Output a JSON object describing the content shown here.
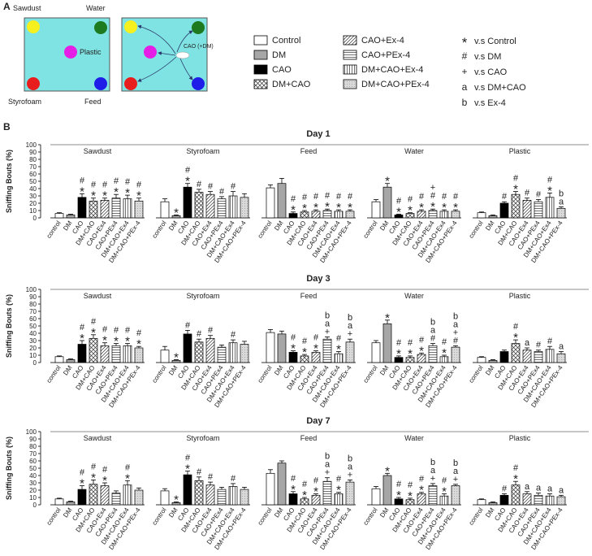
{
  "panel_a": {
    "label": "A",
    "objects": [
      "Sawdust",
      "Water",
      "Plastic",
      "Styrofoam",
      "Feed"
    ],
    "arrow_label": "CAO (+DM)"
  },
  "legend": {
    "groups": [
      {
        "name": "Control",
        "fill": "white"
      },
      {
        "name": "DM",
        "fill": "gray"
      },
      {
        "name": "CAO",
        "fill": "black"
      },
      {
        "name": "DM+CAO",
        "fill": "crosshatch"
      },
      {
        "name": "CAO+Ex-4",
        "fill": "diagonal"
      },
      {
        "name": "CAO+PEx-4",
        "fill": "horizontal"
      },
      {
        "name": "DM+CAO+Ex-4",
        "fill": "vertical"
      },
      {
        "name": "DM+CAO+PEx-4",
        "fill": "lightgray"
      }
    ],
    "markers": [
      {
        "symbol": "*",
        "text": "v.s Control",
        "color": "#000000"
      },
      {
        "symbol": "#",
        "text": "v.s DM",
        "color": "#e8262a"
      },
      {
        "symbol": "+",
        "text": "v.s CAO",
        "color": "#2a4fd6"
      },
      {
        "symbol": "a",
        "text": "v.s DM+CAO",
        "color": "#1f8a3a"
      },
      {
        "symbol": "b",
        "text": "v.s Ex-4",
        "color": "#7b2f9e"
      }
    ]
  },
  "panel_b_label": "B",
  "chart_data": [
    {
      "type": "bar",
      "title": "Day 1",
      "ylabel": "Sniffing Bouts (%)",
      "ylim": [
        0,
        100
      ],
      "yticks": [
        0,
        10,
        20,
        30,
        40,
        50,
        60,
        70,
        80,
        90,
        100
      ],
      "categories": [
        "control",
        "DM",
        "CAO",
        "DM+CAO",
        "CAO+Ex4",
        "CAO+PEx4",
        "DM+CAO+Ex4",
        "DM+CAO+PEx-4"
      ],
      "panels": [
        {
          "name": "Sawdust",
          "values": [
            6,
            4,
            28,
            23,
            24,
            27,
            26,
            23
          ],
          "errors": [
            1,
            1,
            5,
            4,
            3,
            5,
            5,
            4
          ],
          "marks": [
            [],
            [],
            [
              "*",
              "#"
            ],
            [
              "*",
              "#"
            ],
            [
              "*",
              "#"
            ],
            [
              "*",
              "#"
            ],
            [
              "*",
              "#"
            ],
            [
              "*",
              "#"
            ]
          ]
        },
        {
          "name": "Styrofoam",
          "values": [
            22,
            3,
            42,
            35,
            32,
            26,
            30,
            28
          ],
          "errors": [
            4,
            1,
            5,
            4,
            4,
            3,
            6,
            5
          ],
          "marks": [
            [],
            [
              "*"
            ],
            [
              "*",
              "#"
            ],
            [
              "#"
            ],
            [
              "#"
            ],
            [
              "#"
            ],
            [
              "#"
            ],
            []
          ]
        },
        {
          "name": "Feed",
          "values": [
            41,
            47,
            6,
            8,
            9,
            10,
            9,
            9
          ],
          "errors": [
            4,
            7,
            2,
            2,
            2,
            2,
            2,
            2
          ],
          "marks": [
            [],
            [],
            [
              "*",
              "#"
            ],
            [
              "*",
              "#"
            ],
            [
              "*",
              "#"
            ],
            [
              "*",
              "#"
            ],
            [
              "*",
              "#"
            ],
            [
              "*",
              "#"
            ]
          ]
        },
        {
          "name": "Water",
          "values": [
            22,
            42,
            4,
            6,
            9,
            10,
            9,
            9
          ],
          "errors": [
            3,
            5,
            1,
            1,
            2,
            2,
            2,
            2
          ],
          "marks": [
            [],
            [
              "*"
            ],
            [
              "*",
              "#"
            ],
            [
              "*",
              "#"
            ],
            [
              "*",
              "#"
            ],
            [
              "*",
              "#",
              "+"
            ],
            [
              "*",
              "#"
            ],
            [
              "*",
              "#"
            ]
          ]
        },
        {
          "name": "Plastic",
          "values": [
            7,
            3,
            20,
            32,
            24,
            22,
            28,
            13
          ],
          "errors": [
            1,
            1,
            2,
            4,
            3,
            3,
            6,
            2
          ],
          "marks": [
            [],
            [],
            [
              "#"
            ],
            [
              "*",
              "#"
            ],
            [
              "#"
            ],
            [
              "#"
            ],
            [
              "*",
              "#"
            ],
            [
              "a",
              "b"
            ]
          ]
        }
      ]
    },
    {
      "type": "bar",
      "title": "Day 3",
      "ylabel": "Sniffing Bouts (%)",
      "ylim": [
        0,
        100
      ],
      "yticks": [
        0,
        10,
        20,
        30,
        40,
        50,
        60,
        70,
        80,
        90,
        100
      ],
      "categories": [
        "control",
        "DM",
        "CAO",
        "DM+CAO",
        "CAO+Ex4",
        "CAO+PEx4",
        "DM+CAO+Ex4",
        "DM+CAO+PEx-4"
      ],
      "panels": [
        {
          "name": "Sawdust",
          "values": [
            8,
            4,
            25,
            33,
            23,
            23,
            23,
            20
          ],
          "errors": [
            1,
            1,
            5,
            5,
            4,
            3,
            3,
            2
          ],
          "marks": [
            [],
            [],
            [
              "*",
              "#"
            ],
            [
              "*",
              "#"
            ],
            [
              "*",
              "#"
            ],
            [
              "*",
              "#"
            ],
            [
              "*",
              "#"
            ],
            [
              "*",
              "#"
            ]
          ]
        },
        {
          "name": "Styrofoam",
          "values": [
            17,
            3,
            39,
            28,
            33,
            21,
            27,
            25
          ],
          "errors": [
            5,
            1,
            5,
            4,
            4,
            3,
            4,
            4
          ],
          "marks": [
            [],
            [
              "*"
            ],
            [
              "#"
            ],
            [
              "#"
            ],
            [
              "#"
            ],
            [],
            [
              "#"
            ],
            []
          ]
        },
        {
          "name": "Feed",
          "values": [
            41,
            39,
            14,
            9,
            14,
            32,
            12,
            28
          ],
          "errors": [
            4,
            4,
            2,
            2,
            2,
            3,
            3,
            4
          ],
          "marks": [
            [],
            [],
            [
              "*",
              "#"
            ],
            [
              "*",
              "#"
            ],
            [
              "*",
              "#"
            ],
            [
              "+",
              "a",
              "b"
            ],
            [
              "*",
              "#"
            ],
            [
              "+",
              "a",
              "b"
            ]
          ]
        },
        {
          "name": "Water",
          "values": [
            27,
            53,
            7,
            7,
            11,
            23,
            8,
            21
          ],
          "errors": [
            3,
            5,
            2,
            2,
            2,
            3,
            2,
            2
          ],
          "marks": [
            [],
            [
              "*"
            ],
            [
              "*",
              "#"
            ],
            [
              "*",
              "#"
            ],
            [
              "*",
              "#"
            ],
            [
              "#",
              "a",
              "b"
            ],
            [
              "*",
              "#"
            ],
            [
              "#",
              "+",
              "a",
              "b"
            ]
          ]
        },
        {
          "name": "Plastic",
          "values": [
            7,
            3,
            15,
            26,
            17,
            15,
            18,
            12
          ],
          "errors": [
            1,
            1,
            2,
            5,
            3,
            2,
            4,
            3
          ],
          "marks": [
            [],
            [],
            [],
            [
              "*",
              "#"
            ],
            [
              "a"
            ],
            [
              "#"
            ],
            [
              "#"
            ],
            [
              "a"
            ]
          ]
        }
      ]
    },
    {
      "type": "bar",
      "title": "Day 7",
      "ylabel": "Sniffing Bouts (%)",
      "ylim": [
        0,
        100
      ],
      "yticks": [
        0,
        10,
        20,
        30,
        40,
        50,
        60,
        70,
        80,
        90,
        100
      ],
      "categories": [
        "control",
        "DM",
        "CAO",
        "DM+CAO",
        "CAO+Ex4",
        "CAO+PEx4",
        "DM+CAO+Ex4",
        "DM+CAO+PEx-4"
      ],
      "panels": [
        {
          "name": "Sawdust",
          "values": [
            8,
            4,
            21,
            28,
            26,
            16,
            27,
            20
          ],
          "errors": [
            1,
            1,
            5,
            6,
            4,
            3,
            6,
            3
          ],
          "marks": [
            [],
            [],
            [
              "*",
              "#"
            ],
            [
              "*",
              "#"
            ],
            [
              "*",
              "#"
            ],
            [],
            [
              "*",
              "#"
            ],
            []
          ]
        },
        {
          "name": "Styrofoam",
          "values": [
            19,
            3,
            41,
            33,
            27,
            21,
            25,
            21
          ],
          "errors": [
            3,
            1,
            5,
            5,
            4,
            3,
            4,
            3
          ],
          "marks": [
            [],
            [
              "*"
            ],
            [
              "*",
              "#"
            ],
            [
              "#"
            ],
            [
              "#"
            ],
            [],
            [
              "#"
            ],
            []
          ]
        },
        {
          "name": "Feed",
          "values": [
            43,
            57,
            15,
            8,
            13,
            32,
            15,
            31
          ],
          "errors": [
            5,
            3,
            3,
            2,
            2,
            5,
            2,
            3
          ],
          "marks": [
            [],
            [],
            [
              "*",
              "#"
            ],
            [
              "*",
              "#"
            ],
            [
              "*",
              "#"
            ],
            [
              "+",
              "a",
              "b"
            ],
            [
              "*",
              "#"
            ],
            [
              "+",
              "a",
              "b"
            ]
          ]
        },
        {
          "name": "Water",
          "values": [
            22,
            40,
            8,
            7,
            15,
            26,
            12,
            26
          ],
          "errors": [
            3,
            3,
            2,
            2,
            2,
            3,
            3,
            2
          ],
          "marks": [
            [],
            [
              "*"
            ],
            [
              "*",
              "#"
            ],
            [
              "*",
              "#"
            ],
            [
              "*",
              "#"
            ],
            [
              "+",
              "a",
              "b"
            ],
            [
              "*",
              "#"
            ],
            [
              "+",
              "a",
              "b"
            ]
          ]
        },
        {
          "name": "Plastic",
          "values": [
            7,
            3,
            13,
            27,
            15,
            13,
            12,
            11
          ],
          "errors": [
            1,
            1,
            2,
            5,
            3,
            3,
            3,
            2
          ],
          "marks": [
            [],
            [],
            [
              "#"
            ],
            [
              "*",
              "#"
            ],
            [
              "a"
            ],
            [
              "a"
            ],
            [
              "a"
            ],
            [
              "a"
            ]
          ]
        }
      ]
    }
  ]
}
